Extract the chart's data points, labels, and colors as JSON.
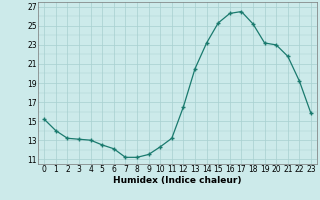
{
  "x": [
    0,
    1,
    2,
    3,
    4,
    5,
    6,
    7,
    8,
    9,
    10,
    11,
    12,
    13,
    14,
    15,
    16,
    17,
    18,
    19,
    20,
    21,
    22,
    23
  ],
  "y": [
    15.2,
    14.0,
    13.2,
    13.1,
    13.0,
    12.5,
    12.1,
    11.2,
    11.2,
    11.5,
    12.3,
    13.2,
    16.5,
    20.5,
    23.2,
    25.3,
    26.3,
    26.5,
    25.2,
    23.2,
    23.0,
    21.8,
    19.2,
    15.8
  ],
  "line_color": "#1a7a6e",
  "marker": "+",
  "markersize": 3,
  "markeredgewidth": 1.0,
  "linewidth": 0.9,
  "bg_color": "#cceaea",
  "grid_color": "#a8d0d0",
  "xlabel": "Humidex (Indice chaleur)",
  "xlim": [
    -0.5,
    23.5
  ],
  "ylim": [
    10.5,
    27.5
  ],
  "xticks": [
    0,
    1,
    2,
    3,
    4,
    5,
    6,
    7,
    8,
    9,
    10,
    11,
    12,
    13,
    14,
    15,
    16,
    17,
    18,
    19,
    20,
    21,
    22,
    23
  ],
  "yticks": [
    11,
    13,
    15,
    17,
    19,
    21,
    23,
    25,
    27
  ],
  "tick_fontsize": 5.5,
  "xlabel_fontsize": 6.5,
  "xlabel_fontweight": "bold"
}
